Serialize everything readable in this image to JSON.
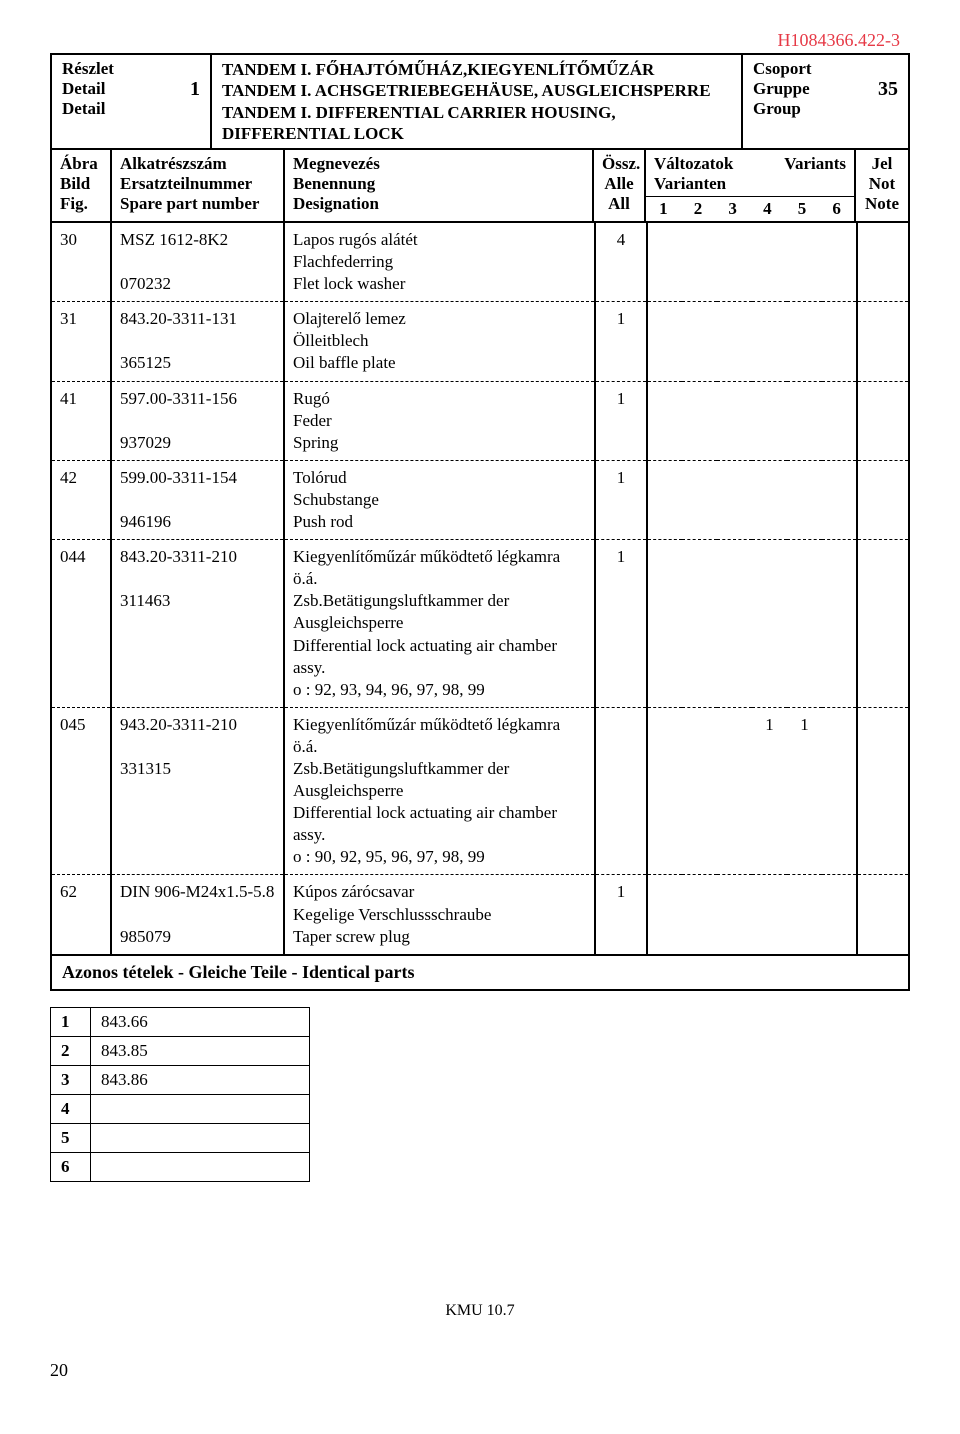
{
  "doc_number": "H1084366.422-3",
  "header": {
    "left": {
      "l1": "Részlet",
      "l2": "Detail",
      "l3": "Detail",
      "num": "1"
    },
    "mid": {
      "l1": "TANDEM I. FŐHAJTÓMŰHÁZ,KIEGYENLÍTŐMŰZÁR",
      "l2": "TANDEM I. ACHSGETRIEBEGEHÄUSE, AUSGLEICHSPERRE",
      "l3": "TANDEM I. DIFFERENTIAL CARRIER HOUSING, DIFFERENTIAL LOCK"
    },
    "right": {
      "l1": "Csoport",
      "l2": "Gruppe",
      "l3": "Group",
      "num": "35"
    }
  },
  "meta": {
    "col1": {
      "a": "Ábra",
      "b": "Bild",
      "c": "Fig."
    },
    "col2": {
      "a": "Alkatrészszám",
      "b": "Ersatzteilnummer",
      "c": "Spare part number"
    },
    "col3": {
      "a": "Megnevezés",
      "b": "Benennung",
      "c": "Designation"
    },
    "col4": {
      "a": "Össz.",
      "b": "Alle",
      "c": "All"
    },
    "col5": {
      "a": "Változatok",
      "b": "Varianten",
      "variants_label": "Variants"
    },
    "col6": {
      "a": "Jel",
      "b": "Not",
      "c": "Note"
    },
    "variant_nums": [
      "1",
      "2",
      "3",
      "4",
      "5",
      "6"
    ]
  },
  "rows": [
    {
      "fig": "30",
      "part1": "MSZ 1612-8K2",
      "part2": "070232",
      "d1": "Lapos rugós alátét",
      "d2": "Flachfederring",
      "d3": "Flet lock washer",
      "all": "4",
      "v": [
        "",
        "",
        "",
        "",
        "",
        ""
      ],
      "dash": false
    },
    {
      "fig": "31",
      "part1": "843.20-3311-131",
      "part2": "365125",
      "d1": "Olajterelő lemez",
      "d2": "Ölleitblech",
      "d3": "Oil baffle plate",
      "all": "1",
      "v": [
        "",
        "",
        "",
        "",
        "",
        ""
      ],
      "dash": true
    },
    {
      "fig": "41",
      "part1": "597.00-3311-156",
      "part2": "937029",
      "d1": "Rugó",
      "d2": "Feder",
      "d3": "Spring",
      "all": "1",
      "v": [
        "",
        "",
        "",
        "",
        "",
        ""
      ],
      "dash": true
    },
    {
      "fig": "42",
      "part1": "599.00-3311-154",
      "part2": "946196",
      "d1": "Tolórud",
      "d2": "Schubstange",
      "d3": "Push rod",
      "all": "1",
      "v": [
        "",
        "",
        "",
        "",
        "",
        ""
      ],
      "dash": true
    },
    {
      "fig": "044",
      "part1": "843.20-3311-210",
      "part2": "311463",
      "d1": "Kiegyenlítőműzár működtető légkamra ö.á.",
      "d2": "Zsb.Betätigungsluftkammer der Ausgleichsperre",
      "d3": "Differential lock actuating air chamber assy.",
      "extra": "o  : 92, 93, 94, 96, 97, 98, 99",
      "all": "1",
      "v": [
        "",
        "",
        "",
        "",
        "",
        ""
      ],
      "dash": true
    },
    {
      "fig": "045",
      "part1": "943.20-3311-210",
      "part2": "331315",
      "d1": "Kiegyenlítőműzár működtető légkamra ö.á.",
      "d2": "Zsb.Betätigungsluftkammer der Ausgleichsperre",
      "d3": "Differential lock actuating air chamber assy.",
      "extra": "o  : 90, 92, 95, 96, 97, 98, 99",
      "all": "",
      "v": [
        "",
        "",
        "",
        "1",
        "1",
        ""
      ],
      "dash": true
    },
    {
      "fig": "62",
      "part1": "DIN 906-M24x1.5-5.8",
      "part2": "985079",
      "d1": "Kúpos zárócsavar",
      "d2": "Kegelige Verschlussschraube",
      "d3": "Taper screw plug",
      "all": "1",
      "v": [
        "",
        "",
        "",
        "",
        "",
        ""
      ],
      "dash": true
    }
  ],
  "identical_title": "Azonos tételek - Gleiche Teile - Identical parts",
  "identical": [
    {
      "n": "1",
      "v": "843.66"
    },
    {
      "n": "2",
      "v": "843.85"
    },
    {
      "n": "3",
      "v": "843.86"
    },
    {
      "n": "4",
      "v": ""
    },
    {
      "n": "5",
      "v": ""
    },
    {
      "n": "6",
      "v": ""
    }
  ],
  "footer_center": "KMU 10.7",
  "page_number": "20"
}
